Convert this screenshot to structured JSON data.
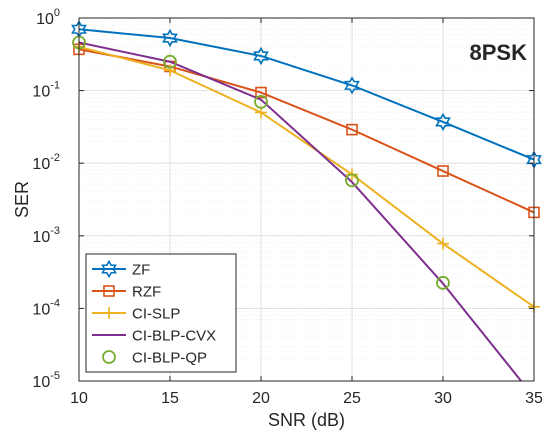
{
  "chart_data": {
    "type": "line",
    "annotation": "8PSK",
    "xlabel": "SNR (dB)",
    "ylabel": "SER",
    "xlim": [
      10,
      35
    ],
    "ylim": [
      1e-05,
      1
    ],
    "yscale": "log",
    "grid": true,
    "legend_position": "bottom-left",
    "x_ticks": [
      10,
      15,
      20,
      25,
      30,
      35
    ],
    "y_ticks": [
      {
        "value": 1,
        "base": "10",
        "exp": "0"
      },
      {
        "value": 0.1,
        "base": "10",
        "exp": "-1"
      },
      {
        "value": 0.01,
        "base": "10",
        "exp": "-2"
      },
      {
        "value": 0.001,
        "base": "10",
        "exp": "-3"
      },
      {
        "value": 0.0001,
        "base": "10",
        "exp": "-4"
      },
      {
        "value": 1e-05,
        "base": "10",
        "exp": "-5"
      }
    ],
    "series": [
      {
        "name": "ZF",
        "color": "#0072BD",
        "marker": "hexagram",
        "x": [
          10,
          15,
          20,
          25,
          30,
          35
        ],
        "y": [
          0.7,
          0.53,
          0.3,
          0.118,
          0.037,
          0.0112
        ]
      },
      {
        "name": "RZF",
        "color": "#D95319",
        "marker": "square",
        "x": [
          10,
          15,
          20,
          25,
          30,
          35
        ],
        "y": [
          0.37,
          0.215,
          0.094,
          0.029,
          0.0078,
          0.0021
        ]
      },
      {
        "name": "CI-SLP",
        "color": "#EDB120",
        "marker": "plus",
        "x": [
          10,
          15,
          20,
          25,
          30,
          35
        ],
        "y": [
          0.4,
          0.19,
          0.05,
          0.007,
          0.00078,
          0.000105
        ]
      },
      {
        "name": "CI-BLP-CVX",
        "color": "#7E2F8E",
        "marker": "none",
        "x": [
          10,
          15,
          20,
          25,
          30,
          35
        ],
        "y": [
          0.46,
          0.25,
          0.075,
          0.0055,
          0.00022,
          6e-06
        ]
      },
      {
        "name": "CI-BLP-QP",
        "color": "#77AC30",
        "marker": "circle",
        "line": false,
        "x": [
          10,
          15,
          20,
          25,
          30
        ],
        "y": [
          0.46,
          0.25,
          0.07,
          0.0058,
          0.000225
        ]
      }
    ]
  }
}
